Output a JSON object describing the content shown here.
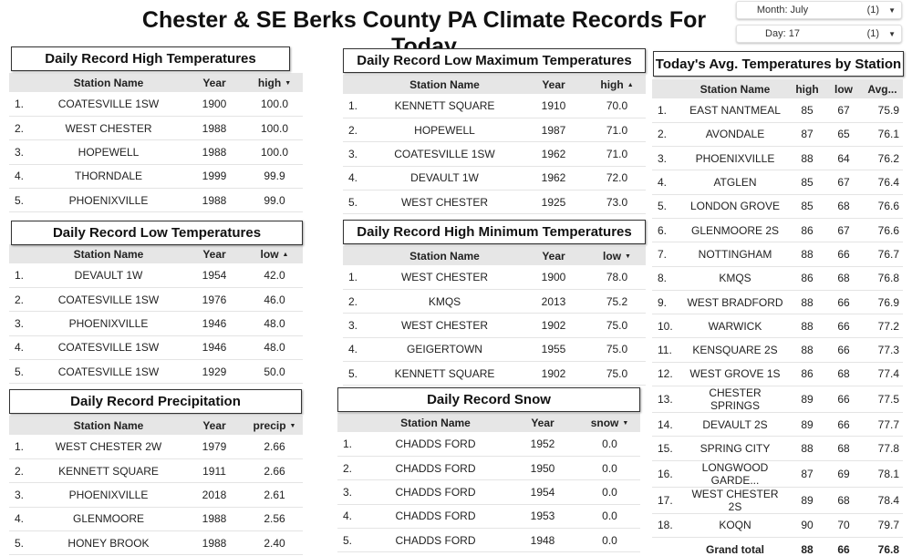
{
  "header": {
    "title": "Chester & SE Berks County PA Climate Records For Today"
  },
  "filters": {
    "month": {
      "label": "Month: July",
      "count": "(1)"
    },
    "day": {
      "label": "Day: 17",
      "count": "(1)"
    }
  },
  "record_high": {
    "title": "Daily Record High Temperatures",
    "cols": [
      "Station Name",
      "Year",
      "high"
    ],
    "rows": [
      [
        "1.",
        "COATESVILLE 1SW",
        "1900",
        "100.0"
      ],
      [
        "2.",
        "WEST CHESTER",
        "1988",
        "100.0"
      ],
      [
        "3.",
        "HOPEWELL",
        "1988",
        "100.0"
      ],
      [
        "4.",
        "THORNDALE",
        "1999",
        "99.9"
      ],
      [
        "5.",
        "PHOENIXVILLE",
        "1988",
        "99.0"
      ]
    ]
  },
  "record_low": {
    "title": "Daily Record Low Temperatures",
    "cols": [
      "Station Name",
      "Year",
      "low"
    ],
    "rows": [
      [
        "1.",
        "DEVAULT 1W",
        "1954",
        "42.0"
      ],
      [
        "2.",
        "COATESVILLE 1SW",
        "1976",
        "46.0"
      ],
      [
        "3.",
        "PHOENIXVILLE",
        "1946",
        "48.0"
      ],
      [
        "4.",
        "COATESVILLE 1SW",
        "1946",
        "48.0"
      ],
      [
        "5.",
        "COATESVILLE 1SW",
        "1929",
        "50.0"
      ]
    ]
  },
  "record_precip": {
    "title": "Daily Record Precipitation",
    "cols": [
      "Station Name",
      "Year",
      "precip"
    ],
    "rows": [
      [
        "1.",
        "WEST CHESTER 2W",
        "1979",
        "2.66"
      ],
      [
        "2.",
        "KENNETT SQUARE",
        "1911",
        "2.66"
      ],
      [
        "3.",
        "PHOENIXVILLE",
        "2018",
        "2.61"
      ],
      [
        "4.",
        "GLENMOORE",
        "1988",
        "2.56"
      ],
      [
        "5.",
        "HONEY BROOK",
        "1988",
        "2.40"
      ]
    ]
  },
  "record_low_max": {
    "title": "Daily Record Low Maximum Temperatures",
    "cols": [
      "Station Name",
      "Year",
      "high"
    ],
    "rows": [
      [
        "1.",
        "KENNETT SQUARE",
        "1910",
        "70.0"
      ],
      [
        "2.",
        "HOPEWELL",
        "1987",
        "71.0"
      ],
      [
        "3.",
        "COATESVILLE 1SW",
        "1962",
        "71.0"
      ],
      [
        "4.",
        "DEVAULT 1W",
        "1962",
        "72.0"
      ],
      [
        "5.",
        "WEST CHESTER",
        "1925",
        "73.0"
      ]
    ]
  },
  "record_high_min": {
    "title": "Daily Record High Minimum Temperatures",
    "cols": [
      "Station Name",
      "Year",
      "low"
    ],
    "rows": [
      [
        "1.",
        "WEST CHESTER",
        "1900",
        "78.0"
      ],
      [
        "2.",
        "KMQS",
        "2013",
        "75.2"
      ],
      [
        "3.",
        "WEST CHESTER",
        "1902",
        "75.0"
      ],
      [
        "4.",
        "GEIGERTOWN",
        "1955",
        "75.0"
      ],
      [
        "5.",
        "KENNETT SQUARE",
        "1902",
        "75.0"
      ]
    ]
  },
  "record_snow": {
    "title": "Daily Record Snow",
    "cols": [
      "Station Name",
      "Year",
      "snow"
    ],
    "rows": [
      [
        "1.",
        "CHADDS FORD",
        "1952",
        "0.0"
      ],
      [
        "2.",
        "CHADDS FORD",
        "1950",
        "0.0"
      ],
      [
        "3.",
        "CHADDS FORD",
        "1954",
        "0.0"
      ],
      [
        "4.",
        "CHADDS FORD",
        "1953",
        "0.0"
      ],
      [
        "5.",
        "CHADDS FORD",
        "1948",
        "0.0"
      ]
    ]
  },
  "avg_temps": {
    "title": "Today's Avg. Temperatures by Station",
    "cols": [
      "Station Name",
      "high",
      "low",
      "Avg..."
    ],
    "rows": [
      [
        "1.",
        "EAST NANTMEAL",
        "85",
        "67",
        "75.9"
      ],
      [
        "2.",
        "AVONDALE",
        "87",
        "65",
        "76.1"
      ],
      [
        "3.",
        "PHOENIXVILLE",
        "88",
        "64",
        "76.2"
      ],
      [
        "4.",
        "ATGLEN",
        "85",
        "67",
        "76.4"
      ],
      [
        "5.",
        "LONDON GROVE",
        "85",
        "68",
        "76.6"
      ],
      [
        "6.",
        "GLENMOORE 2S",
        "86",
        "67",
        "76.6"
      ],
      [
        "7.",
        "NOTTINGHAM",
        "88",
        "66",
        "76.7"
      ],
      [
        "8.",
        "KMQS",
        "86",
        "68",
        "76.8"
      ],
      [
        "9.",
        "WEST BRADFORD",
        "88",
        "66",
        "76.9"
      ],
      [
        "10.",
        "WARWICK",
        "88",
        "66",
        "77.2"
      ],
      [
        "11.",
        "KENSQUARE 2S",
        "88",
        "66",
        "77.3"
      ],
      [
        "12.",
        "WEST GROVE 1S",
        "86",
        "68",
        "77.4"
      ],
      [
        "13.",
        "CHESTER SPRINGS",
        "89",
        "66",
        "77.5"
      ],
      [
        "14.",
        "DEVAULT 2S",
        "89",
        "66",
        "77.7"
      ],
      [
        "15.",
        "SPRING CITY",
        "88",
        "68",
        "77.8"
      ],
      [
        "16.",
        "LONGWOOD GARDE...",
        "87",
        "69",
        "78.1"
      ],
      [
        "17.",
        "WEST CHESTER 2S",
        "89",
        "68",
        "78.4"
      ],
      [
        "18.",
        "KOQN",
        "90",
        "70",
        "79.7"
      ]
    ],
    "total": [
      "Grand total",
      "88",
      "66",
      "76.8"
    ]
  },
  "icons": {
    "sort_down": "caret-down-icon",
    "sort_up": "caret-up-icon",
    "dropdown": "chevron-down-icon"
  }
}
